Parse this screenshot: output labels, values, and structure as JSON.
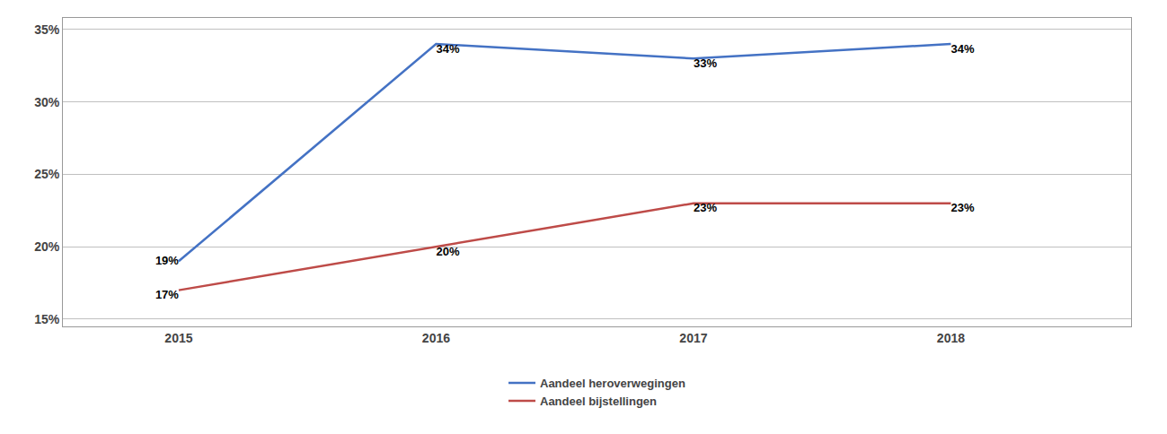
{
  "chart_data": {
    "type": "line",
    "x": [
      2015,
      2016,
      2017,
      2018
    ],
    "series": [
      {
        "name": "Aandeel heroverwegingen",
        "color": "#4472C4",
        "values": [
          0.19,
          0.34,
          0.33,
          0.34
        ],
        "value_labels": [
          "19%",
          "34%",
          "33%",
          "34%"
        ]
      },
      {
        "name": "Aandeel bijstellingen",
        "color": "#BE4B48",
        "values": [
          0.17,
          0.2,
          0.23,
          0.23
        ],
        "value_labels": [
          "17%",
          "20%",
          "23%",
          "23%"
        ]
      }
    ],
    "xlim": [
      2014.55,
      2018.7
    ],
    "xticks": [
      2015,
      2016,
      2017,
      2018
    ],
    "ylim": [
      0.145,
      0.358
    ],
    "yticks": [
      {
        "value": 0.15,
        "label": "15%"
      },
      {
        "value": 0.2,
        "label": "20%"
      },
      {
        "value": 0.25,
        "label": "25%"
      },
      {
        "value": 0.3,
        "label": "30%"
      },
      {
        "value": 0.35,
        "label": "35%"
      }
    ],
    "grid": "y",
    "legend": "bottom",
    "data_labels": true
  }
}
